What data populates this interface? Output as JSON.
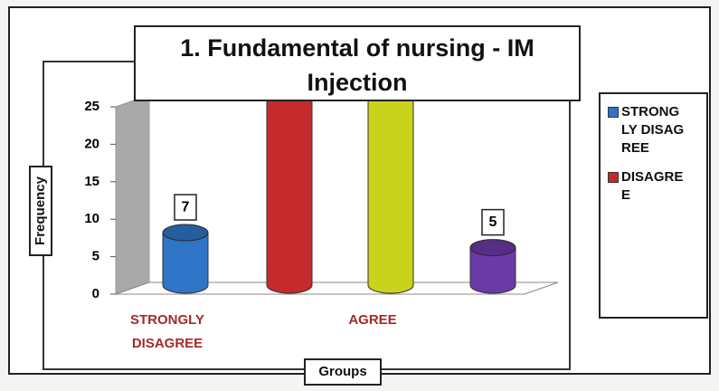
{
  "chart_data": {
    "type": "bar",
    "title": "1. Fundamental of nursing - IM Injection",
    "x_label": "Groups",
    "y_label": "Frequency",
    "categories": [
      "STRONGLY DISAGREE",
      null,
      "AGREE",
      null
    ],
    "values": [
      7,
      26,
      26,
      5
    ],
    "colors": [
      "#2f74c6",
      "#c42a2c",
      "#c9d31c",
      "#6b3aa6"
    ],
    "ylim": [
      0,
      25
    ],
    "yticks": [
      0,
      5,
      10,
      15,
      20,
      25
    ],
    "legend": [
      {
        "name": "STRONGLY DISAGREE",
        "color": "#2f74c6"
      },
      {
        "name": "DISAGREE",
        "color": "#c42a2c"
      }
    ]
  }
}
